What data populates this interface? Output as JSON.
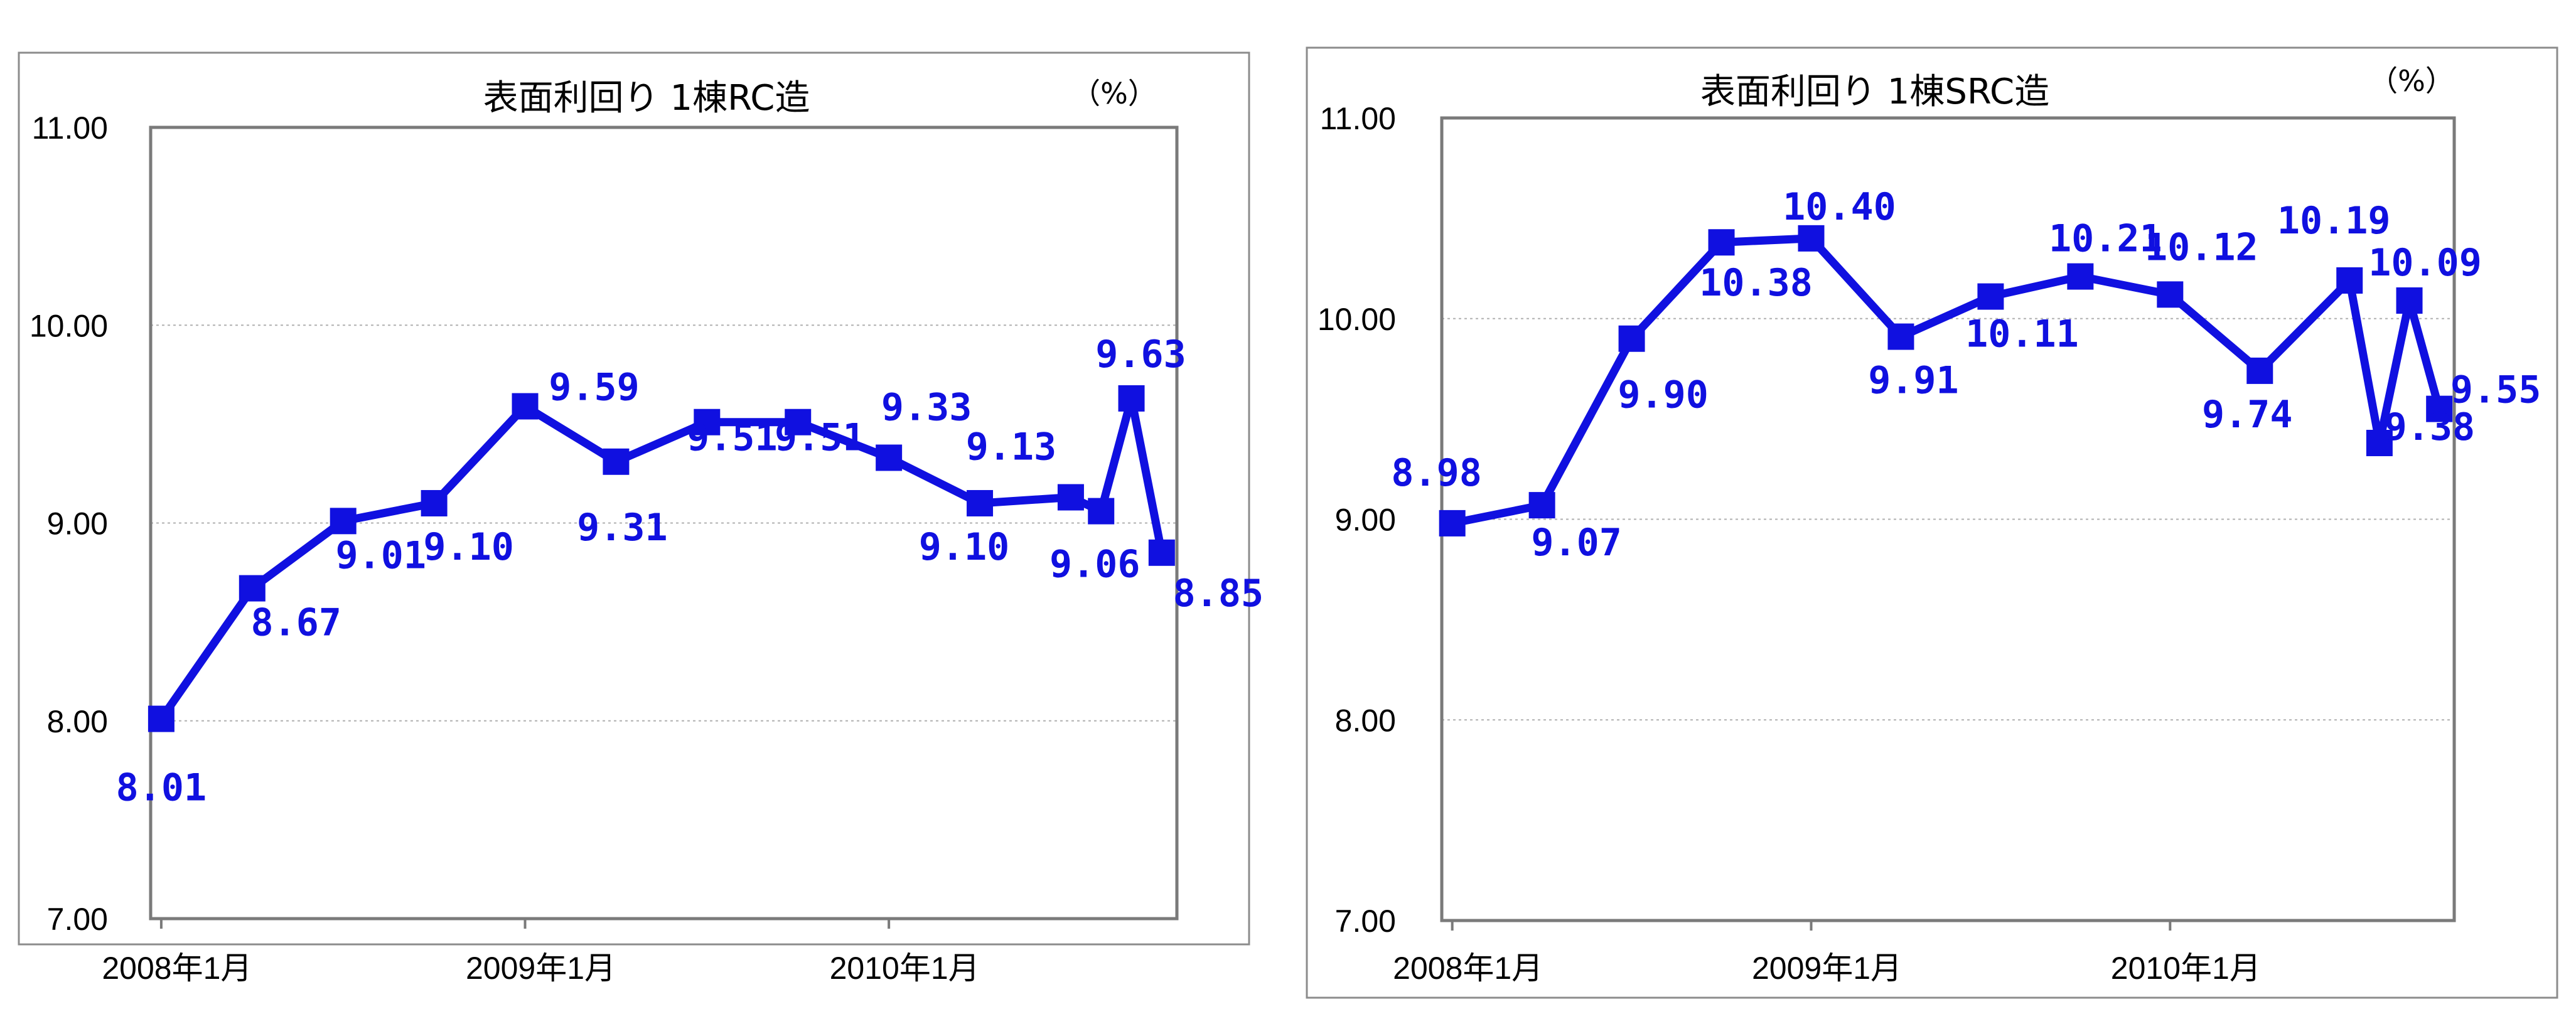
{
  "chart_data": [
    {
      "type": "line",
      "title": "表面利回り 1棟RC造",
      "unit_label": "（%）",
      "ylim": [
        7.0,
        11.0
      ],
      "y_ticks": [
        "11.00",
        "10.00",
        "9.00",
        "8.00",
        "7.00"
      ],
      "y_tick_values": [
        11,
        10,
        9,
        8,
        7
      ],
      "x_tick_labels": [
        "2008年1月",
        "2009年1月",
        "2010年1月"
      ],
      "x_tick_months": [
        0,
        12,
        24
      ],
      "x_range_months": [
        -0.35,
        33.5
      ],
      "grid": true,
      "line_color": "#1010e0",
      "series": [
        {
          "x_months": [
            0,
            3,
            6,
            9,
            12,
            15,
            18,
            21,
            24,
            27,
            30,
            31,
            32,
            33
          ],
          "values": [
            8.01,
            8.67,
            9.01,
            9.1,
            9.59,
            9.31,
            9.51,
            9.51,
            9.33,
            9.1,
            9.13,
            9.06,
            9.63,
            8.85
          ],
          "labels": [
            "8.01",
            "8.67",
            "9.01",
            "9.10",
            "9.59",
            "9.31",
            "9.51",
            "9.51",
            "9.33",
            "9.10",
            "9.13",
            "9.06",
            "9.63",
            "8.85"
          ]
        }
      ]
    },
    {
      "type": "line",
      "title": "表面利回り 1棟SRC造",
      "unit_label": "（%）",
      "ylim": [
        7.0,
        11.0
      ],
      "y_ticks": [
        "11.00",
        "10.00",
        "9.00",
        "8.00",
        "7.00"
      ],
      "y_tick_values": [
        11,
        10,
        9,
        8,
        7
      ],
      "x_tick_labels": [
        "2008年1月",
        "2009年1月",
        "2010年1月"
      ],
      "x_tick_months": [
        0,
        12,
        24
      ],
      "x_range_months": [
        -0.35,
        33.5
      ],
      "grid": true,
      "line_color": "#1010e0",
      "series": [
        {
          "x_months": [
            0,
            3,
            6,
            9,
            12,
            15,
            18,
            21,
            24,
            27,
            30,
            31,
            32,
            33
          ],
          "values": [
            8.98,
            9.07,
            9.9,
            10.38,
            10.4,
            9.91,
            10.11,
            10.21,
            10.12,
            9.74,
            10.19,
            9.38,
            10.09,
            9.55
          ],
          "labels": [
            "8.98",
            "9.07",
            "9.90",
            "10.38",
            "10.40",
            "9.91",
            "10.11",
            "10.21",
            "10.12",
            "9.74",
            "10.19",
            "9.38",
            "10.09",
            "9.55"
          ]
        }
      ]
    }
  ]
}
